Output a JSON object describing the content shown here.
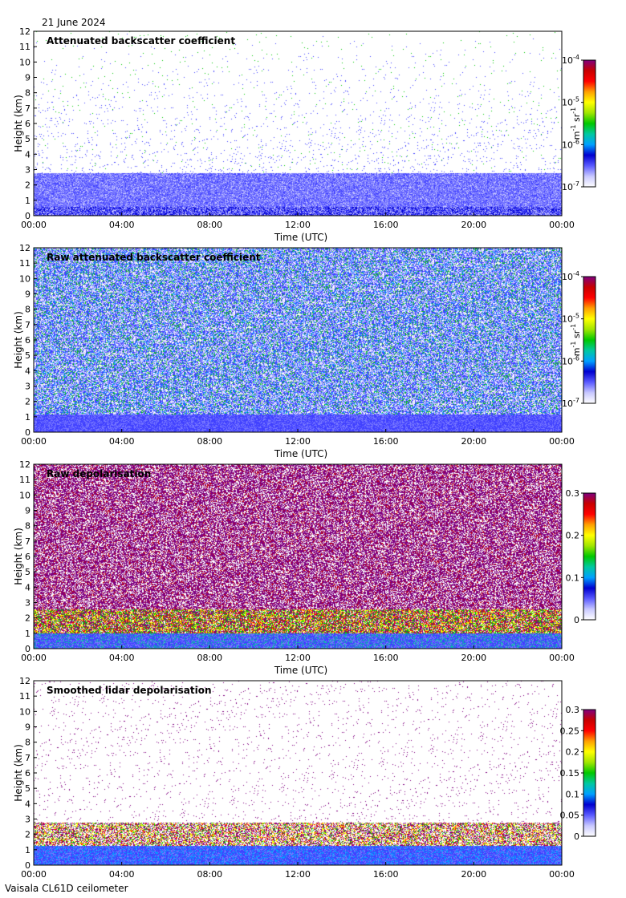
{
  "header": {
    "date": "21 June 2024"
  },
  "footer": {
    "instrument": "Vaisala CL61D ceilometer"
  },
  "colors": {
    "colormap": [
      "#ffffff",
      "#c8c8ff",
      "#5a5aff",
      "#0000d0",
      "#00a0ff",
      "#00c8a0",
      "#00c800",
      "#a0e600",
      "#ffff00",
      "#ffa000",
      "#ff0000",
      "#c80000",
      "#800080"
    ]
  },
  "chart_data": [
    {
      "type": "heatmap",
      "title": "Attenuated backscatter coefficient",
      "xlabel": "Time (UTC)",
      "ylabel": "Height (km)",
      "x_ticks": [
        "00:00",
        "04:00",
        "08:00",
        "12:00",
        "16:00",
        "20:00",
        "00:00"
      ],
      "y_ticks": [
        "0",
        "1",
        "2",
        "3",
        "4",
        "5",
        "6",
        "7",
        "8",
        "9",
        "10",
        "11",
        "12"
      ],
      "xlim_hours": [
        0,
        24
      ],
      "ylim": [
        0,
        12
      ],
      "color_scale": "log",
      "clim": [
        1e-07,
        0.0001
      ],
      "colorbar_ticks": [
        {
          "base": "10",
          "exp": "-4"
        },
        {
          "base": "10",
          "exp": "-5"
        },
        {
          "base": "10",
          "exp": "-6"
        },
        {
          "base": "10",
          "exp": "-7"
        }
      ],
      "colorbar_unit": {
        "m": "m",
        "m_exp": "-1",
        "sr": "sr",
        "sr_exp": "-1"
      },
      "features": {
        "noise": "low",
        "boundary_layer_top_km": 2.8,
        "clouds_visible": true
      }
    },
    {
      "type": "heatmap",
      "title": "Raw attenuated backscatter coefficient",
      "xlabel": "Time (UTC)",
      "ylabel": "Height (km)",
      "x_ticks": [
        "00:00",
        "04:00",
        "08:00",
        "12:00",
        "16:00",
        "20:00",
        "00:00"
      ],
      "y_ticks": [
        "0",
        "1",
        "2",
        "3",
        "4",
        "5",
        "6",
        "7",
        "8",
        "9",
        "10",
        "11",
        "12"
      ],
      "xlim_hours": [
        0,
        24
      ],
      "ylim": [
        0,
        12
      ],
      "color_scale": "log",
      "clim": [
        1e-07,
        0.0001
      ],
      "colorbar_ticks": [
        {
          "base": "10",
          "exp": "-4"
        },
        {
          "base": "10",
          "exp": "-5"
        },
        {
          "base": "10",
          "exp": "-6"
        },
        {
          "base": "10",
          "exp": "-7"
        }
      ],
      "colorbar_unit": {
        "m": "m",
        "m_exp": "-1",
        "sr": "sr",
        "sr_exp": "-1"
      },
      "features": {
        "noise": "high",
        "boundary_layer_top_km": 1.2,
        "clouds_visible": true
      }
    },
    {
      "type": "heatmap",
      "title": "Raw depolarisation",
      "xlabel": "Time (UTC)",
      "ylabel": "Height (km)",
      "x_ticks": [
        "00:00",
        "04:00",
        "08:00",
        "12:00",
        "16:00",
        "20:00",
        "00:00"
      ],
      "y_ticks": [
        "0",
        "1",
        "2",
        "3",
        "4",
        "5",
        "6",
        "7",
        "8",
        "9",
        "10",
        "11",
        "12"
      ],
      "xlim_hours": [
        0,
        24
      ],
      "ylim": [
        0,
        12
      ],
      "color_scale": "linear",
      "clim": [
        0,
        0.3
      ],
      "colorbar_ticks": [
        "0.3",
        "0.2",
        "0.1",
        "0"
      ],
      "features": {
        "noise": "saturated",
        "boundary_layer_top_km": 1.0,
        "clouds_visible": false
      }
    },
    {
      "type": "heatmap",
      "title": "Smoothed lidar depolarisation",
      "xlabel": "Time (UTC)",
      "ylabel": "Height (km)",
      "x_ticks": [
        "00:00",
        "04:00",
        "08:00",
        "12:00",
        "16:00",
        "20:00",
        "00:00"
      ],
      "y_ticks": [
        "0",
        "1",
        "2",
        "3",
        "4",
        "5",
        "6",
        "7",
        "8",
        "9",
        "10",
        "11",
        "12"
      ],
      "xlim_hours": [
        0,
        24
      ],
      "ylim": [
        0,
        12
      ],
      "color_scale": "linear",
      "clim": [
        0,
        0.3
      ],
      "colorbar_ticks": [
        "0.3",
        "0.25",
        "0.2",
        "0.15",
        "0.1",
        "0.05",
        "0"
      ],
      "features": {
        "noise": "sparse",
        "boundary_layer_top_km": 2.8,
        "clouds_visible": true
      }
    }
  ]
}
